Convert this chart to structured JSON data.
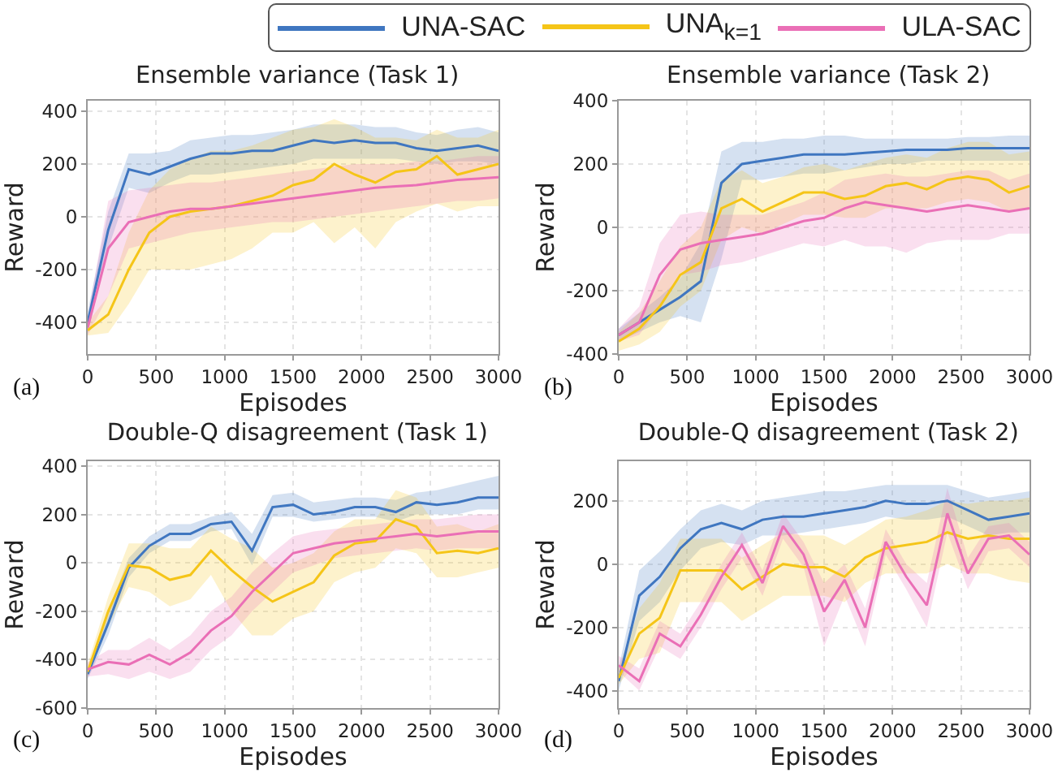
{
  "chart_data": [
    {
      "type": "line",
      "title": "Ensemble variance (Task 1)",
      "xlabel": "Episodes",
      "ylabel": "Reward",
      "annotations": [
        "(a)"
      ],
      "legend": "top",
      "grid": true,
      "xlim": [
        0,
        3000
      ],
      "xticks": [
        0,
        500,
        1000,
        1500,
        2000,
        2500,
        3000
      ],
      "ylim": [
        -520,
        440
      ],
      "yticks": [
        -400,
        -200,
        0,
        200,
        400
      ],
      "x": [
        0,
        150,
        300,
        450,
        600,
        750,
        900,
        1050,
        1200,
        1350,
        1500,
        1650,
        1800,
        1950,
        2100,
        2250,
        2400,
        2550,
        2700,
        2850,
        3000
      ],
      "series": [
        {
          "name": "UNA-SAC",
          "color": "#3f76c0",
          "values": [
            -400,
            -50,
            180,
            160,
            190,
            220,
            240,
            240,
            250,
            250,
            270,
            290,
            280,
            290,
            280,
            280,
            260,
            250,
            260,
            270,
            250
          ],
          "lower": [
            -440,
            -120,
            110,
            90,
            130,
            160,
            160,
            170,
            180,
            190,
            200,
            220,
            220,
            220,
            220,
            220,
            210,
            200,
            210,
            210,
            200
          ],
          "upper": [
            -360,
            20,
            240,
            240,
            250,
            290,
            300,
            310,
            310,
            320,
            330,
            350,
            350,
            350,
            340,
            340,
            320,
            310,
            330,
            340,
            320
          ]
        },
        {
          "name": "UNA$_{k=1}$",
          "color": "#f5c518",
          "values": [
            -430,
            -370,
            -200,
            -60,
            0,
            20,
            30,
            40,
            60,
            80,
            120,
            140,
            200,
            160,
            130,
            170,
            180,
            230,
            160,
            180,
            200
          ],
          "lower": [
            -450,
            -440,
            -330,
            -200,
            -200,
            -200,
            -180,
            -160,
            -120,
            -60,
            -60,
            -20,
            -100,
            -40,
            -120,
            -20,
            20,
            50,
            20,
            40,
            40
          ],
          "upper": [
            -400,
            -300,
            -60,
            100,
            180,
            220,
            250,
            250,
            270,
            300,
            330,
            340,
            370,
            340,
            300,
            300,
            290,
            330,
            300,
            300,
            330
          ]
        },
        {
          "name": "ULA-SAC",
          "color": "#ea6fb6",
          "values": [
            -420,
            -120,
            -20,
            0,
            20,
            30,
            30,
            40,
            50,
            60,
            70,
            80,
            90,
            100,
            110,
            115,
            120,
            130,
            140,
            145,
            150
          ],
          "lower": [
            -450,
            -300,
            -120,
            -100,
            -80,
            -60,
            -50,
            -40,
            -30,
            -20,
            -20,
            -10,
            0,
            10,
            20,
            30,
            40,
            50,
            60,
            60,
            70
          ],
          "upper": [
            -380,
            60,
            100,
            110,
            120,
            130,
            130,
            140,
            150,
            160,
            170,
            180,
            190,
            200,
            200,
            200,
            210,
            210,
            220,
            230,
            230
          ]
        }
      ]
    },
    {
      "type": "line",
      "title": "Ensemble variance (Task 2)",
      "xlabel": "Episodes",
      "ylabel": "Reward",
      "annotations": [
        "(b)"
      ],
      "grid": true,
      "xlim": [
        0,
        3000
      ],
      "xticks": [
        0,
        500,
        1000,
        1500,
        2000,
        2500,
        3000
      ],
      "ylim": [
        -400,
        400
      ],
      "yticks": [
        -400,
        -200,
        0,
        200,
        400
      ],
      "x": [
        0,
        150,
        300,
        450,
        600,
        750,
        900,
        1050,
        1200,
        1350,
        1500,
        1650,
        1800,
        1950,
        2100,
        2250,
        2400,
        2550,
        2700,
        2850,
        3000
      ],
      "series": [
        {
          "color": "#3f76c0",
          "values": [
            -340,
            -300,
            -260,
            -220,
            -170,
            140,
            200,
            210,
            220,
            230,
            230,
            230,
            235,
            240,
            245,
            245,
            245,
            250,
            250,
            250,
            250
          ],
          "lower": [
            -360,
            -330,
            -300,
            -280,
            -300,
            -100,
            150,
            150,
            160,
            170,
            170,
            180,
            190,
            200,
            200,
            210,
            210,
            210,
            210,
            210,
            210
          ],
          "upper": [
            -320,
            -270,
            -220,
            -160,
            -50,
            240,
            270,
            270,
            280,
            280,
            290,
            290,
            280,
            280,
            280,
            280,
            280,
            285,
            285,
            290,
            290
          ]
        },
        {
          "color": "#f5c518",
          "values": [
            -360,
            -320,
            -250,
            -150,
            -110,
            60,
            90,
            50,
            80,
            110,
            110,
            90,
            100,
            130,
            140,
            120,
            150,
            160,
            150,
            110,
            130
          ],
          "lower": [
            -390,
            -370,
            -330,
            -250,
            -200,
            -40,
            0,
            -20,
            10,
            40,
            40,
            30,
            30,
            60,
            60,
            60,
            80,
            90,
            80,
            50,
            60
          ],
          "upper": [
            -330,
            -270,
            -170,
            -60,
            0,
            150,
            180,
            140,
            160,
            190,
            200,
            180,
            200,
            220,
            230,
            220,
            250,
            270,
            270,
            230,
            240
          ]
        },
        {
          "color": "#ea6fb6",
          "values": [
            -340,
            -300,
            -150,
            -70,
            -50,
            -40,
            -30,
            -20,
            0,
            20,
            30,
            60,
            80,
            70,
            60,
            50,
            60,
            70,
            60,
            50,
            60
          ],
          "lower": [
            -360,
            -340,
            -250,
            -150,
            -140,
            -120,
            -110,
            -90,
            -70,
            -50,
            -60,
            -40,
            -60,
            -60,
            -80,
            -50,
            -40,
            -40,
            -40,
            -20,
            -20
          ],
          "upper": [
            -320,
            -250,
            -50,
            40,
            50,
            40,
            40,
            40,
            60,
            80,
            110,
            150,
            160,
            170,
            160,
            160,
            170,
            180,
            180,
            150,
            170
          ]
        }
      ]
    },
    {
      "type": "line",
      "title": "Double-Q disagreement (Task 1)",
      "xlabel": "Episodes",
      "ylabel": "Reward",
      "annotations": [
        "(c)"
      ],
      "grid": true,
      "xlim": [
        0,
        3000
      ],
      "xticks": [
        0,
        500,
        1000,
        1500,
        2000,
        2500,
        3000
      ],
      "ylim": [
        -600,
        420
      ],
      "yticks": [
        -600,
        -400,
        -200,
        0,
        200,
        400
      ],
      "x": [
        0,
        150,
        300,
        450,
        600,
        750,
        900,
        1050,
        1200,
        1350,
        1500,
        1650,
        1800,
        1950,
        2100,
        2250,
        2400,
        2550,
        2700,
        2850,
        3000
      ],
      "series": [
        {
          "color": "#3f76c0",
          "values": [
            -460,
            -250,
            -20,
            70,
            120,
            120,
            160,
            170,
            50,
            230,
            240,
            200,
            210,
            230,
            230,
            210,
            250,
            240,
            250,
            270,
            270
          ],
          "lower": [
            -480,
            -300,
            -60,
            40,
            90,
            90,
            130,
            140,
            -10,
            190,
            190,
            170,
            180,
            190,
            190,
            170,
            200,
            200,
            200,
            220,
            220
          ],
          "upper": [
            -440,
            -200,
            20,
            110,
            160,
            160,
            190,
            210,
            120,
            280,
            290,
            250,
            260,
            270,
            270,
            260,
            290,
            300,
            320,
            340,
            360
          ]
        },
        {
          "color": "#f5c518",
          "values": [
            -450,
            -200,
            -10,
            -20,
            -70,
            -50,
            50,
            -30,
            -100,
            -160,
            -120,
            -80,
            30,
            80,
            90,
            180,
            150,
            40,
            50,
            40,
            60
          ],
          "lower": [
            -470,
            -260,
            -100,
            -120,
            -180,
            -150,
            -50,
            -200,
            -300,
            -300,
            -230,
            -200,
            -80,
            -40,
            -20,
            60,
            40,
            -60,
            -60,
            -40,
            -20
          ],
          "upper": [
            -420,
            -140,
            80,
            80,
            60,
            60,
            150,
            100,
            60,
            -20,
            0,
            40,
            130,
            180,
            180,
            300,
            270,
            150,
            160,
            130,
            160
          ]
        },
        {
          "color": "#ea6fb6",
          "values": [
            -440,
            -410,
            -420,
            -380,
            -420,
            -370,
            -280,
            -220,
            -120,
            -40,
            40,
            60,
            80,
            90,
            100,
            110,
            120,
            110,
            120,
            130,
            130
          ],
          "lower": [
            -470,
            -460,
            -480,
            -450,
            -480,
            -450,
            -360,
            -300,
            -200,
            -120,
            -40,
            -10,
            20,
            30,
            40,
            50,
            60,
            50,
            60,
            60,
            60
          ],
          "upper": [
            -410,
            -360,
            -360,
            -310,
            -360,
            -300,
            -200,
            -140,
            -40,
            40,
            110,
            130,
            140,
            150,
            160,
            170,
            180,
            180,
            190,
            200,
            200
          ]
        }
      ]
    },
    {
      "type": "line",
      "title": "Double-Q disagreement (Task 2)",
      "xlabel": "Episodes",
      "ylabel": "Reward",
      "annotations": [
        "(d)"
      ],
      "grid": true,
      "xlim": [
        0,
        3000
      ],
      "xticks": [
        0,
        500,
        1000,
        1500,
        2000,
        2500,
        3000
      ],
      "ylim": [
        -455,
        325
      ],
      "yticks": [
        -400,
        -200,
        0,
        200
      ],
      "x": [
        0,
        150,
        300,
        450,
        600,
        750,
        900,
        1050,
        1200,
        1350,
        1500,
        1650,
        1800,
        1950,
        2100,
        2250,
        2400,
        2550,
        2700,
        2850,
        3000
      ],
      "series": [
        {
          "color": "#3f76c0",
          "values": [
            -370,
            -100,
            -40,
            50,
            110,
            130,
            110,
            140,
            150,
            150,
            160,
            170,
            180,
            200,
            190,
            190,
            200,
            170,
            140,
            150,
            160
          ],
          "lower": [
            -400,
            -180,
            -120,
            -20,
            50,
            70,
            60,
            90,
            90,
            100,
            110,
            120,
            130,
            150,
            140,
            140,
            150,
            120,
            90,
            100,
            100
          ],
          "upper": [
            -330,
            -20,
            40,
            110,
            170,
            190,
            170,
            200,
            210,
            220,
            230,
            230,
            240,
            250,
            250,
            250,
            250,
            230,
            210,
            220,
            230
          ]
        },
        {
          "color": "#f5c518",
          "values": [
            -360,
            -220,
            -170,
            -20,
            -20,
            -20,
            -80,
            -40,
            0,
            -10,
            -10,
            -40,
            20,
            50,
            60,
            70,
            100,
            80,
            90,
            80,
            80
          ],
          "lower": [
            -380,
            -300,
            -280,
            -120,
            -120,
            -120,
            -180,
            -140,
            -100,
            -100,
            -100,
            -120,
            -60,
            -30,
            -30,
            -30,
            0,
            -30,
            -30,
            -50,
            -60
          ],
          "upper": [
            -330,
            -140,
            -60,
            80,
            80,
            80,
            20,
            60,
            100,
            90,
            90,
            60,
            100,
            140,
            150,
            170,
            200,
            190,
            200,
            200,
            210
          ]
        },
        {
          "color": "#ea6fb6",
          "values": [
            -320,
            -370,
            -220,
            -260,
            -160,
            -40,
            60,
            -60,
            120,
            30,
            -150,
            -50,
            -200,
            70,
            -40,
            -130,
            160,
            -30,
            80,
            90,
            30
          ],
          "lower": [
            -340,
            -400,
            -260,
            -300,
            -200,
            -80,
            20,
            -100,
            80,
            -10,
            -260,
            -100,
            -260,
            30,
            -80,
            -200,
            100,
            -80,
            40,
            50,
            -10
          ],
          "upper": [
            -290,
            -330,
            -180,
            -220,
            -120,
            0,
            100,
            -20,
            160,
            70,
            -60,
            0,
            -140,
            110,
            0,
            -60,
            240,
            20,
            120,
            130,
            70
          ]
        }
      ]
    }
  ]
}
